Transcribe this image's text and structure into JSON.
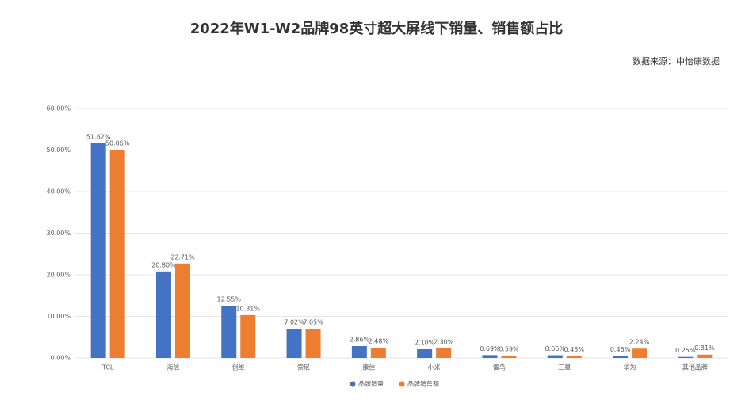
{
  "chart_data": {
    "type": "bar",
    "title": "2022年W1-W2品牌98英寸超大屏线下销量、销售额占比",
    "source": "数据来源：中怡康数据",
    "categories": [
      "TCL",
      "海信",
      "创维",
      "索尼",
      "康佳",
      "小米",
      "雷鸟",
      "三星",
      "华为",
      "其他品牌"
    ],
    "series": [
      {
        "name": "品牌销量",
        "color": "#4472c4",
        "values": [
          51.62,
          20.8,
          12.55,
          7.02,
          2.86,
          2.1,
          0.69,
          0.66,
          0.46,
          0.25
        ],
        "value_labels": [
          "51.62%",
          "20.80%",
          "12.55%",
          "7.02%",
          "2.86%",
          "2.10%",
          "0.69%",
          "0.66%",
          "0.46%",
          "0.25%"
        ]
      },
      {
        "name": "品牌销售额",
        "color": "#ed7d31",
        "values": [
          50.06,
          22.71,
          10.31,
          7.05,
          2.48,
          2.3,
          0.59,
          0.45,
          2.24,
          0.81
        ],
        "value_labels": [
          "50.06%",
          "22.71%",
          "10.31%",
          "7.05%",
          "2.48%",
          "2.30%",
          "0.59%",
          "0.45%",
          "2.24%",
          "0.81%"
        ]
      }
    ],
    "ylim": [
      0,
      60
    ],
    "yticks": [
      {
        "value": 0,
        "label": "0.00%"
      },
      {
        "value": 10,
        "label": "10.00%"
      },
      {
        "value": 20,
        "label": "20.00%"
      },
      {
        "value": 30,
        "label": "30.00%"
      },
      {
        "value": 40,
        "label": "40.00%"
      },
      {
        "value": 50,
        "label": "50.00%"
      },
      {
        "value": 60,
        "label": "60.00%"
      }
    ],
    "grid": true
  }
}
